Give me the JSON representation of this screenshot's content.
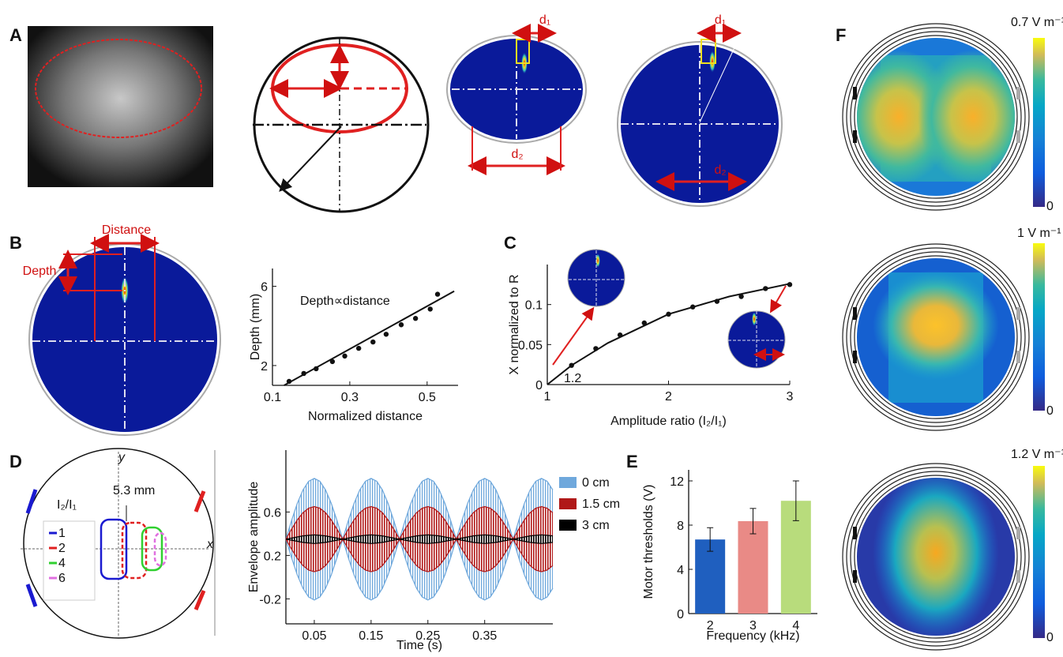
{
  "panel_labels": [
    "A",
    "B",
    "C",
    "D",
    "E",
    "F"
  ],
  "panel_a": {
    "labels": [
      "d₁",
      "d₂",
      "d₁",
      "d₂"
    ]
  },
  "panel_b": {
    "distance_label": "Distance",
    "depth_label": "Depth"
  },
  "panel_d_diagram": {
    "y_label": "y",
    "x_label": "x",
    "spacing_label": "5.3 mm",
    "legend_title": "I₂/I₁",
    "legend": [
      {
        "name": "1",
        "color": "#1a1ad0"
      },
      {
        "name": "2",
        "color": "#e02020"
      },
      {
        "name": "4",
        "color": "#30d030"
      },
      {
        "name": "6",
        "color": "#e070e0"
      }
    ]
  },
  "panel_f": {
    "colorbars": [
      {
        "max_label": "0.7 V m⁻¹",
        "min_label": "0"
      },
      {
        "max_label": "1 V m⁻¹",
        "min_label": "0"
      },
      {
        "max_label": "1.2 V m⁻¹",
        "min_label": "0"
      }
    ]
  },
  "chart_data": [
    {
      "type": "scatter",
      "xlabel": "Normalized distance",
      "ylabel": "Depth (mm)",
      "annotation": "Depth∝distance",
      "x": [
        0.143,
        0.181,
        0.213,
        0.255,
        0.287,
        0.323,
        0.36,
        0.394,
        0.433,
        0.47,
        0.508,
        0.527
      ],
      "values": [
        1.2,
        1.6,
        1.84,
        2.2,
        2.48,
        2.87,
        3.19,
        3.58,
        4.06,
        4.38,
        4.85,
        5.6
      ],
      "fit_x": [
        0.13,
        0.57
      ],
      "fit_values": [
        1.0,
        5.75
      ],
      "xlim": [
        0.1,
        0.58
      ],
      "ylim": [
        1,
        6.9
      ],
      "xticks": [
        0.1,
        0.3,
        0.5
      ],
      "yticks": [
        2,
        6
      ]
    },
    {
      "type": "scatter",
      "xlabel": "Amplitude ratio (I₂/I₁)",
      "ylabel": "X normalized to R",
      "annotation": "1.2",
      "x": [
        1.2,
        1.4,
        1.6,
        1.8,
        2.0,
        2.2,
        2.4,
        2.6,
        2.8,
        3.0
      ],
      "values": [
        0.024,
        0.045,
        0.062,
        0.077,
        0.088,
        0.097,
        0.104,
        0.11,
        0.12,
        0.125
      ],
      "fit_x": [
        1,
        1.2,
        1.5,
        2,
        2.5,
        3
      ],
      "fit_values": [
        0,
        0.024,
        0.052,
        0.088,
        0.11,
        0.126
      ],
      "xlim": [
        1,
        3
      ],
      "ylim": [
        0,
        0.15
      ],
      "xticks": [
        1,
        2,
        3
      ],
      "yticks": [
        0,
        0.05,
        0.1
      ]
    },
    {
      "type": "band",
      "xlabel": "Time (s)",
      "ylabel": "Envelope  amplitude",
      "x": [
        0,
        0.01,
        0.02,
        0.03,
        0.04,
        0.05,
        0.06,
        0.07,
        0.08,
        0.09,
        0.1,
        0.11,
        0.12,
        0.13,
        0.14,
        0.15,
        0.16,
        0.17,
        0.18,
        0.19,
        0.2,
        0.21,
        0.22,
        0.23,
        0.24,
        0.25,
        0.26,
        0.27,
        0.28,
        0.29,
        0.3,
        0.31,
        0.32,
        0.33,
        0.34,
        0.35,
        0.36,
        0.37,
        0.38,
        0.39,
        0.4,
        0.41,
        0.42,
        0.43,
        0.44,
        0.45,
        0.46,
        0.47
      ],
      "series": [
        {
          "name": "0 cm",
          "color": "#6fa8dc",
          "values": [
            0.35,
            0.523,
            0.679,
            0.803,
            0.883,
            0.91,
            0.883,
            0.803,
            0.679,
            0.523,
            0.35,
            0.523,
            0.679,
            0.803,
            0.883,
            0.91,
            0.883,
            0.803,
            0.679,
            0.523,
            0.35,
            0.523,
            0.679,
            0.803,
            0.883,
            0.91,
            0.883,
            0.803,
            0.679,
            0.523,
            0.35,
            0.523,
            0.679,
            0.803,
            0.883,
            0.91,
            0.883,
            0.803,
            0.679,
            0.523,
            0.35,
            0.523,
            0.679,
            0.803,
            0.883,
            0.91,
            0.883,
            0.803
          ],
          "lower_values": [
            0.35,
            0.177,
            0.021,
            -0.103,
            -0.183,
            -0.21,
            -0.183,
            -0.103,
            0.021,
            0.177,
            0.35,
            0.177,
            0.021,
            -0.103,
            -0.183,
            -0.21,
            -0.183,
            -0.103,
            0.021,
            0.177,
            0.35,
            0.177,
            0.021,
            -0.103,
            -0.183,
            -0.21,
            -0.183,
            -0.103,
            0.021,
            0.177,
            0.35,
            0.177,
            0.021,
            -0.103,
            -0.183,
            -0.21,
            -0.183,
            -0.103,
            0.021,
            0.177,
            0.35,
            0.177,
            0.021,
            -0.103,
            -0.183,
            -0.21,
            -0.183,
            -0.103
          ]
        },
        {
          "name": "1.5 cm",
          "color": "#b01818",
          "values": [
            0.35,
            0.443,
            0.526,
            0.593,
            0.635,
            0.65,
            0.635,
            0.593,
            0.526,
            0.443,
            0.35,
            0.443,
            0.526,
            0.593,
            0.635,
            0.65,
            0.635,
            0.593,
            0.526,
            0.443,
            0.35,
            0.443,
            0.526,
            0.593,
            0.635,
            0.65,
            0.635,
            0.593,
            0.526,
            0.443,
            0.35,
            0.443,
            0.526,
            0.593,
            0.635,
            0.65,
            0.635,
            0.593,
            0.526,
            0.443,
            0.35,
            0.443,
            0.526,
            0.593,
            0.635,
            0.65,
            0.635,
            0.593
          ],
          "lower_values": [
            0.35,
            0.257,
            0.174,
            0.107,
            0.065,
            0.05,
            0.065,
            0.107,
            0.174,
            0.257,
            0.35,
            0.257,
            0.174,
            0.107,
            0.065,
            0.05,
            0.065,
            0.107,
            0.174,
            0.257,
            0.35,
            0.257,
            0.174,
            0.107,
            0.065,
            0.05,
            0.065,
            0.107,
            0.174,
            0.257,
            0.35,
            0.257,
            0.174,
            0.107,
            0.065,
            0.05,
            0.065,
            0.107,
            0.174,
            0.257,
            0.35,
            0.257,
            0.174,
            0.107,
            0.065,
            0.05,
            0.065,
            0.107
          ]
        },
        {
          "name": "3 cm",
          "color": "#000000",
          "values": [
            0.35,
            0.36,
            0.37,
            0.38,
            0.385,
            0.39,
            0.385,
            0.38,
            0.37,
            0.36,
            0.35,
            0.36,
            0.37,
            0.38,
            0.385,
            0.39,
            0.385,
            0.38,
            0.37,
            0.36,
            0.35,
            0.36,
            0.37,
            0.38,
            0.385,
            0.39,
            0.385,
            0.38,
            0.37,
            0.36,
            0.35,
            0.36,
            0.37,
            0.38,
            0.385,
            0.39,
            0.385,
            0.38,
            0.37,
            0.36,
            0.35,
            0.36,
            0.37,
            0.38,
            0.385,
            0.39,
            0.385,
            0.38
          ],
          "lower_values": [
            0.35,
            0.34,
            0.33,
            0.32,
            0.315,
            0.31,
            0.315,
            0.32,
            0.33,
            0.34,
            0.35,
            0.34,
            0.33,
            0.32,
            0.315,
            0.31,
            0.315,
            0.32,
            0.33,
            0.34,
            0.35,
            0.34,
            0.33,
            0.32,
            0.315,
            0.31,
            0.315,
            0.32,
            0.33,
            0.34,
            0.35,
            0.34,
            0.33,
            0.32,
            0.315,
            0.31,
            0.315,
            0.32,
            0.33,
            0.34,
            0.35,
            0.34,
            0.33,
            0.32,
            0.315,
            0.31,
            0.315,
            0.32
          ]
        }
      ],
      "xlim": [
        0,
        0.47
      ],
      "ylim": [
        -0.43,
        1.17
      ],
      "xticks": [
        0.05,
        0.15,
        0.25,
        0.35
      ],
      "yticks": [
        -0.2,
        0.2,
        0.6
      ]
    },
    {
      "type": "bar",
      "xlabel": "Frequency (kHz)",
      "ylabel": "Motor thresholds (V)",
      "categories": [
        "2",
        "3",
        "4"
      ],
      "values": [
        6.7,
        8.36,
        10.2
      ],
      "errors": [
        1.07,
        1.15,
        1.8
      ],
      "colors": [
        "#1f5fbf",
        "#e98a86",
        "#b8dc7c"
      ],
      "ylim": [
        0,
        13
      ],
      "yticks": [
        0,
        4,
        8,
        12
      ]
    }
  ]
}
